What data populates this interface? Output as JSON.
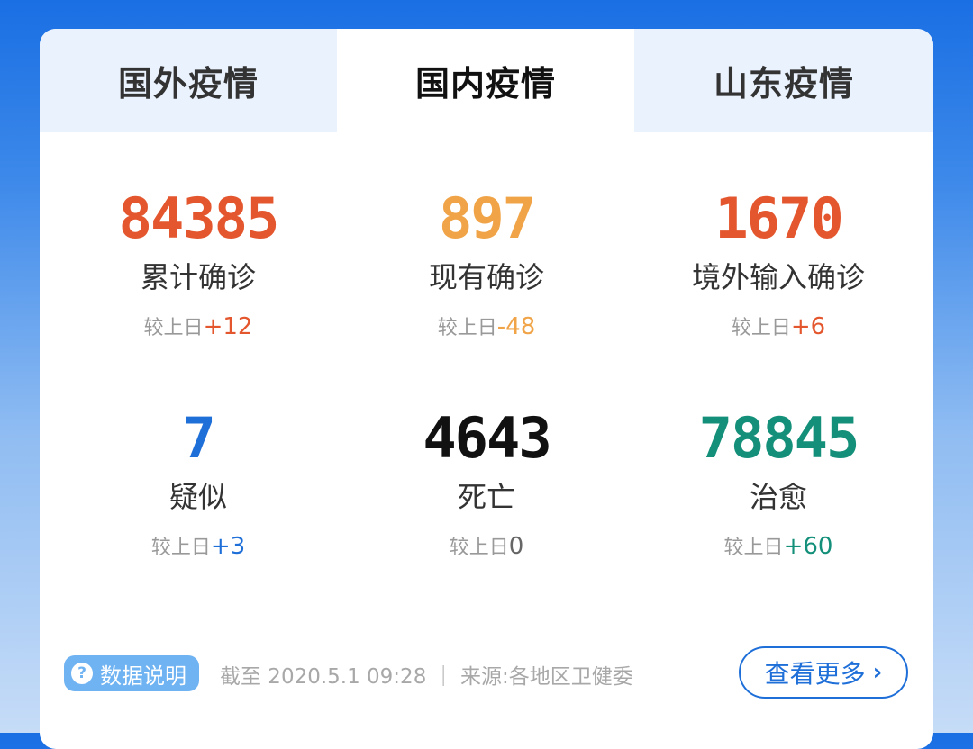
{
  "tabs": [
    {
      "label": "国外疫情",
      "active": false
    },
    {
      "label": "国内疫情",
      "active": true
    },
    {
      "label": "山东疫情",
      "active": false
    }
  ],
  "stats": [
    {
      "value": "84385",
      "label": "累计确诊",
      "change_prefix": "较上日",
      "change": "+12",
      "color": "#e4572e",
      "change_color": "#e4572e"
    },
    {
      "value": "897",
      "label": "现有确诊",
      "change_prefix": "较上日",
      "change": "-48",
      "color": "#f0a447",
      "change_color": "#f0a447"
    },
    {
      "value": "1670",
      "label": "境外输入确诊",
      "change_prefix": "较上日",
      "change": "+6",
      "color": "#e4572e",
      "change_color": "#e4572e"
    },
    {
      "value": "7",
      "label": "疑似",
      "change_prefix": "较上日",
      "change": "+3",
      "color": "#1f6fd9",
      "change_color": "#1f6fd9"
    },
    {
      "value": "4643",
      "label": "死亡",
      "change_prefix": "较上日",
      "change": "0",
      "color": "#111111",
      "change_color": "#666666"
    },
    {
      "value": "78845",
      "label": "治愈",
      "change_prefix": "较上日",
      "change": "+60",
      "color": "#14907a",
      "change_color": "#14907a"
    }
  ],
  "footer": {
    "badge_icon": "question-icon",
    "badge_icon_glyph": "?",
    "badge_label": "数据说明",
    "meta": "截至 2020.5.1 09:28 ｜ 来源:各地区卫健委",
    "more_label": "查看更多",
    "more_icon": "chevron-right-icon",
    "more_glyph": "›"
  }
}
